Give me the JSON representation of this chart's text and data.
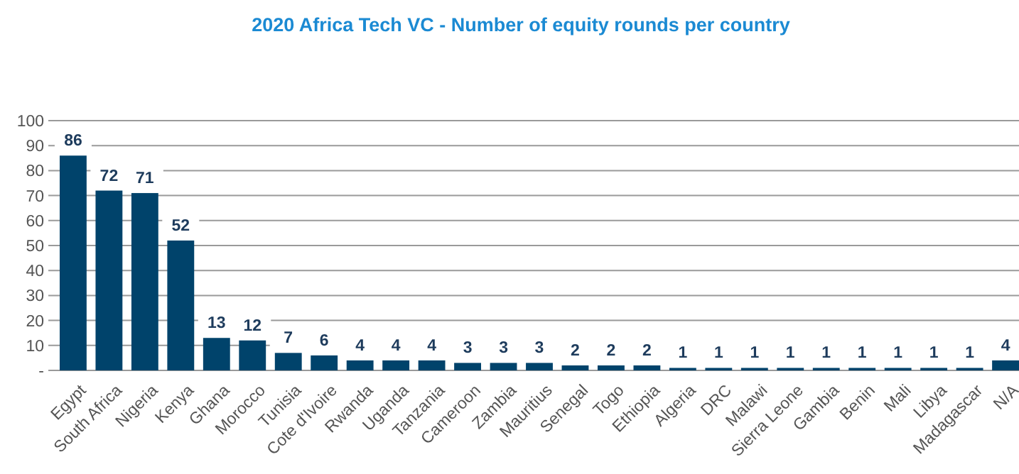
{
  "chart_data": {
    "type": "bar",
    "title": "2020 Africa Tech VC - Number of equity rounds per country",
    "categories": [
      "Egypt",
      "South Africa",
      "Nigeria",
      "Kenya",
      "Ghana",
      "Morocco",
      "Tunisia",
      "Cote d'Ivoire",
      "Rwanda",
      "Uganda",
      "Tanzania",
      "Cameroon",
      "Zambia",
      "Mauritius",
      "Senegal",
      "Togo",
      "Ethiopia",
      "Algeria",
      "DRC",
      "Malawi",
      "Sierra Leone",
      "Gambia",
      "Benin",
      "Mali",
      "Libya",
      "Madagascar",
      "N/A"
    ],
    "values": [
      86,
      72,
      71,
      52,
      13,
      12,
      7,
      6,
      4,
      4,
      4,
      3,
      3,
      3,
      2,
      2,
      2,
      1,
      1,
      1,
      1,
      1,
      1,
      1,
      1,
      1,
      4
    ],
    "color": "#00436b",
    "ylim": [
      0,
      100
    ],
    "yticks": [
      {
        "value": 0,
        "label": "-"
      },
      10,
      20,
      30,
      40,
      50,
      60,
      70,
      80,
      90,
      100
    ],
    "grid": "y",
    "data_labels": true
  }
}
